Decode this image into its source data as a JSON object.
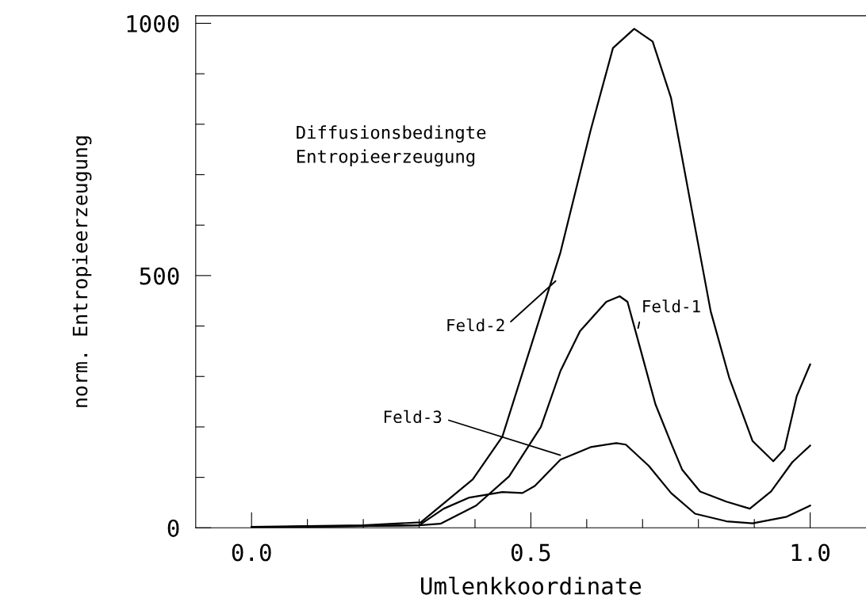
{
  "chart_data": {
    "type": "line",
    "xlabel": "Umlenkkoordinate",
    "ylabel": "norm. Entropieerzeugung",
    "annotations": [
      "Diffusionsbedingte\nEntropieerzeugung"
    ],
    "xlim": [
      -0.1,
      1.1
    ],
    "ylim": [
      0,
      1015
    ],
    "xticks": [
      {
        "value": 0.0,
        "label": "0.0"
      },
      {
        "value": 0.1,
        "label": null
      },
      {
        "value": 0.2,
        "label": null
      },
      {
        "value": 0.3,
        "label": null
      },
      {
        "value": 0.4,
        "label": null
      },
      {
        "value": 0.5,
        "label": "0.5"
      },
      {
        "value": 0.6,
        "label": null
      },
      {
        "value": 0.7,
        "label": null
      },
      {
        "value": 0.8,
        "label": null
      },
      {
        "value": 0.9,
        "label": null
      },
      {
        "value": 1.0,
        "label": "1.0"
      }
    ],
    "yticks": [
      0,
      {
        "value": 100,
        "label": null
      },
      {
        "value": 200,
        "label": null
      },
      {
        "value": 300,
        "label": null
      },
      {
        "value": 400,
        "label": null
      },
      500,
      {
        "value": 600,
        "label": null
      },
      {
        "value": 700,
        "label": null
      },
      {
        "value": 800,
        "label": null
      },
      {
        "value": 900,
        "label": null
      },
      1000
    ],
    "grid": false,
    "legend": false,
    "marker": "none",
    "line_style": "solid",
    "series": [
      {
        "name": "Feld-2",
        "color": "#000000",
        "x": [
          0.0,
          0.2,
          0.303,
          0.396,
          0.449,
          0.501,
          0.553,
          0.607,
          0.647,
          0.685,
          0.718,
          0.751,
          0.787,
          0.822,
          0.855,
          0.897,
          0.934,
          0.954,
          0.976,
          1.0
        ],
        "values": [
          2,
          5,
          11,
          96,
          181,
          363,
          546,
          788,
          951,
          989,
          964,
          852,
          637,
          429,
          298,
          172,
          132,
          156,
          261,
          324
        ]
      },
      {
        "name": "Feld-1",
        "color": "#000000",
        "x": [
          0.0,
          0.3,
          0.338,
          0.402,
          0.461,
          0.518,
          0.553,
          0.588,
          0.635,
          0.659,
          0.673,
          0.694,
          0.723,
          0.751,
          0.771,
          0.803,
          0.85,
          0.892,
          0.93,
          0.968,
          1.0
        ],
        "values": [
          1,
          5,
          8,
          44,
          102,
          200,
          311,
          390,
          448,
          459,
          448,
          363,
          245,
          168,
          115,
          72,
          52,
          38,
          72,
          130,
          163
        ]
      },
      {
        "name": "Feld-3",
        "color": "#000000",
        "x": [
          0.0,
          0.3,
          0.344,
          0.39,
          0.449,
          0.485,
          0.507,
          0.553,
          0.607,
          0.653,
          0.67,
          0.711,
          0.751,
          0.794,
          0.85,
          0.897,
          0.958,
          1.0
        ],
        "values": [
          1,
          5,
          38,
          60,
          71,
          69,
          83,
          135,
          160,
          168,
          165,
          123,
          69,
          28,
          13,
          9,
          22,
          44
        ]
      }
    ]
  }
}
